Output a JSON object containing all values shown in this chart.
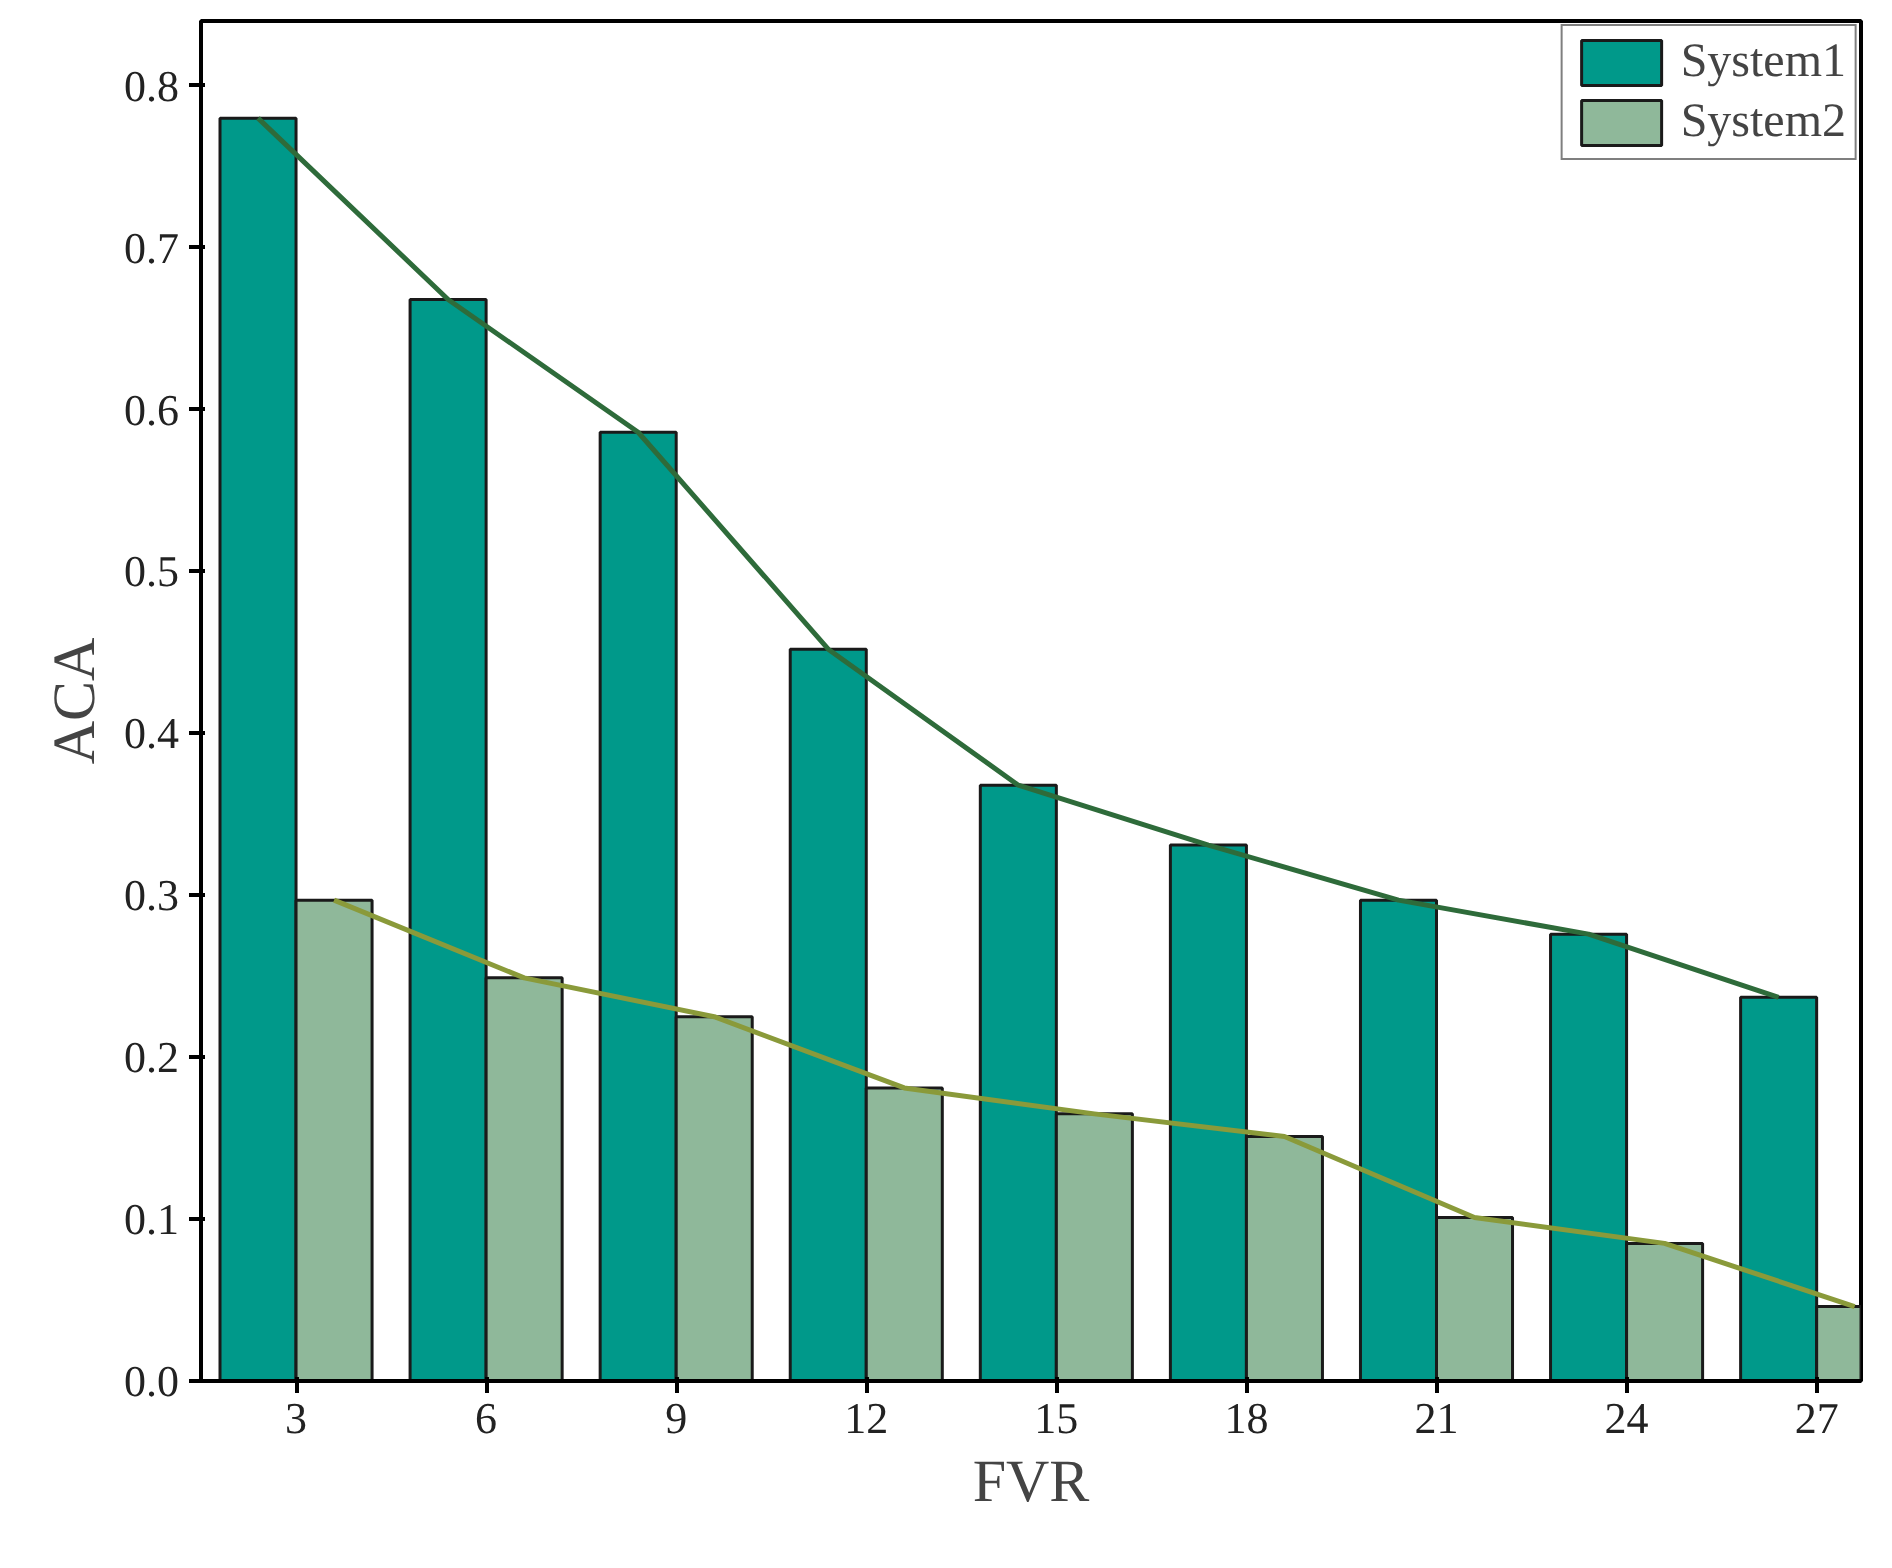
{
  "chart_data": {
    "type": "bar",
    "xlabel": "FVR",
    "ylabel": "ACA",
    "x": [
      3,
      6,
      9,
      12,
      15,
      18,
      21,
      24,
      27
    ],
    "xlim": [
      1.5,
      27.7
    ],
    "xticks": [
      3,
      6,
      9,
      12,
      15,
      18,
      21,
      24,
      27
    ],
    "ylim": [
      0,
      0.84
    ],
    "yticks": [
      {
        "value": 0,
        "label": "0.0"
      },
      0.1,
      0.2,
      0.3,
      0.4,
      0.5,
      0.6,
      0.7,
      0.8
    ],
    "series": [
      {
        "name": "System1",
        "color": "#00998a",
        "values": [
          0.78,
          0.668,
          0.586,
          0.452,
          0.368,
          0.331,
          0.297,
          0.276,
          0.237
        ]
      },
      {
        "name": "System2",
        "color": "#8fb89a",
        "values": [
          0.297,
          0.249,
          0.225,
          0.181,
          0.165,
          0.151,
          0.101,
          0.085,
          0.046
        ]
      },
      {
        "type": "line",
        "color": "#2e6b3a",
        "x": [
          2.4,
          5.4,
          8.4,
          11.4,
          14.4,
          17.4,
          20.4,
          23.4,
          26.4
        ],
        "values": [
          0.78,
          0.668,
          0.586,
          0.452,
          0.368,
          0.331,
          0.297,
          0.276,
          0.237
        ]
      },
      {
        "type": "line",
        "color": "#8a9a3a",
        "x": [
          3.6,
          6.6,
          9.6,
          12.6,
          15.6,
          18.6,
          21.6,
          24.6,
          27.6
        ],
        "values": [
          0.297,
          0.249,
          0.225,
          0.181,
          0.165,
          0.151,
          0.101,
          0.085,
          0.046
        ]
      }
    ],
    "legend": "top right",
    "grid": false
  }
}
